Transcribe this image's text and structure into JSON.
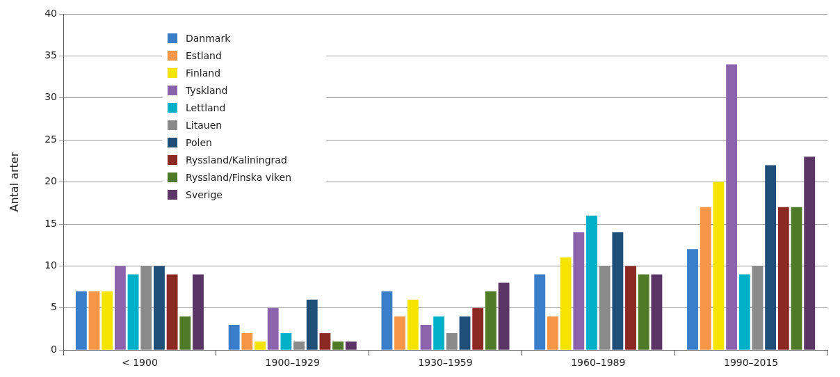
{
  "chart_data": {
    "type": "bar",
    "ylabel": "Antal arter",
    "categories": [
      "< 1900",
      "1900–1929",
      "1930–1959",
      "1960–1989",
      "1990–2015"
    ],
    "series": [
      {
        "name": "Danmark",
        "color": "#3a7dc9",
        "values": [
          7,
          3,
          7,
          9,
          12
        ]
      },
      {
        "name": "Estland",
        "color": "#f79646",
        "values": [
          7,
          2,
          4,
          4,
          17
        ]
      },
      {
        "name": "Finland",
        "color": "#f5e400",
        "values": [
          7,
          1,
          6,
          11,
          20
        ]
      },
      {
        "name": "Tyskland",
        "color": "#8c64ad",
        "values": [
          10,
          5,
          3,
          14,
          34
        ]
      },
      {
        "name": "Lettland",
        "color": "#00b0c8",
        "values": [
          9,
          2,
          4,
          16,
          9
        ]
      },
      {
        "name": "Litauen",
        "color": "#8a8a8a",
        "values": [
          10,
          1,
          2,
          10,
          10
        ]
      },
      {
        "name": "Polen",
        "color": "#1f4e79",
        "values": [
          10,
          6,
          4,
          14,
          22
        ]
      },
      {
        "name": "Ryssland/Kaliningrad",
        "color": "#8b2a22",
        "values": [
          9,
          2,
          5,
          10,
          17
        ]
      },
      {
        "name": "Ryssland/Finska viken",
        "color": "#4f7a28",
        "values": [
          4,
          1,
          7,
          9,
          17
        ]
      },
      {
        "name": "Sverige",
        "color": "#5a3566",
        "values": [
          9,
          1,
          8,
          9,
          23
        ]
      }
    ],
    "ylim": [
      0,
      40
    ],
    "yticks": [
      0,
      5,
      10,
      15,
      20,
      25,
      30,
      35,
      40
    ],
    "grid": "y",
    "legend": "top left"
  }
}
